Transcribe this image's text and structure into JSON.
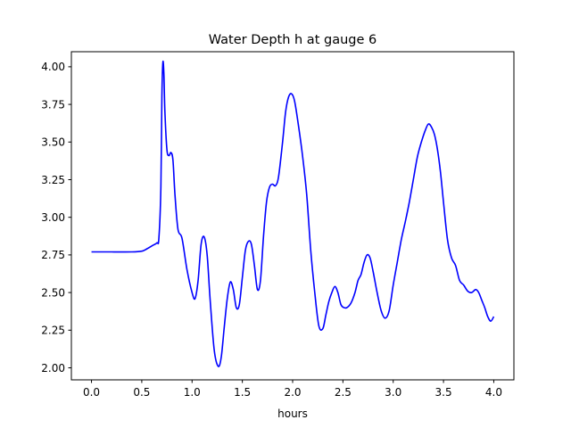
{
  "chart_data": {
    "type": "line",
    "title": "Water Depth h at gauge 6",
    "xlabel": "hours",
    "ylabel": "",
    "xlim": [
      -0.2,
      4.2
    ],
    "ylim": [
      1.92,
      4.1
    ],
    "xticks": [
      0.0,
      0.5,
      1.0,
      1.5,
      2.0,
      2.5,
      3.0,
      3.5,
      4.0
    ],
    "xtick_labels": [
      "0.0",
      "0.5",
      "1.0",
      "1.5",
      "2.0",
      "2.5",
      "3.0",
      "3.5",
      "4.0"
    ],
    "yticks": [
      2.0,
      2.25,
      2.5,
      2.75,
      3.0,
      3.25,
      3.5,
      3.75,
      4.0
    ],
    "ytick_labels": [
      "2.00",
      "2.25",
      "2.50",
      "2.75",
      "3.00",
      "3.25",
      "3.50",
      "3.75",
      "4.00"
    ],
    "grid": false,
    "series": [
      {
        "color": "#0000ff",
        "x": [
          0.0,
          0.2,
          0.4,
          0.5,
          0.55,
          0.6,
          0.65,
          0.67,
          0.69,
          0.7,
          0.71,
          0.72,
          0.73,
          0.75,
          0.77,
          0.79,
          0.81,
          0.83,
          0.86,
          0.9,
          0.95,
          1.0,
          1.03,
          1.06,
          1.09,
          1.12,
          1.15,
          1.18,
          1.22,
          1.26,
          1.29,
          1.32,
          1.35,
          1.38,
          1.41,
          1.44,
          1.47,
          1.5,
          1.53,
          1.56,
          1.59,
          1.62,
          1.65,
          1.68,
          1.71,
          1.74,
          1.77,
          1.8,
          1.83,
          1.86,
          1.9,
          1.93,
          1.96,
          1.99,
          2.02,
          2.06,
          2.1,
          2.14,
          2.18,
          2.22,
          2.26,
          2.3,
          2.33,
          2.36,
          2.39,
          2.42,
          2.45,
          2.48,
          2.51,
          2.54,
          2.58,
          2.62,
          2.65,
          2.68,
          2.71,
          2.74,
          2.77,
          2.8,
          2.84,
          2.88,
          2.92,
          2.96,
          3.0,
          3.04,
          3.08,
          3.12,
          3.16,
          3.2,
          3.24,
          3.28,
          3.32,
          3.35,
          3.38,
          3.41,
          3.44,
          3.47,
          3.5,
          3.54,
          3.58,
          3.62,
          3.66,
          3.7,
          3.74,
          3.78,
          3.82,
          3.85,
          3.88,
          3.91,
          3.94,
          3.97,
          4.0
        ],
        "y": [
          2.77,
          2.77,
          2.77,
          2.775,
          2.79,
          2.81,
          2.83,
          2.86,
          3.2,
          3.8,
          4.03,
          3.95,
          3.7,
          3.45,
          3.41,
          3.43,
          3.38,
          3.15,
          2.92,
          2.86,
          2.65,
          2.5,
          2.46,
          2.58,
          2.82,
          2.87,
          2.75,
          2.45,
          2.12,
          2.01,
          2.07,
          2.27,
          2.46,
          2.57,
          2.52,
          2.4,
          2.42,
          2.6,
          2.78,
          2.84,
          2.82,
          2.68,
          2.52,
          2.58,
          2.87,
          3.1,
          3.2,
          3.22,
          3.21,
          3.27,
          3.5,
          3.7,
          3.8,
          3.82,
          3.77,
          3.6,
          3.4,
          3.15,
          2.78,
          2.5,
          2.28,
          2.26,
          2.35,
          2.44,
          2.5,
          2.54,
          2.5,
          2.42,
          2.4,
          2.4,
          2.43,
          2.5,
          2.58,
          2.62,
          2.7,
          2.75,
          2.73,
          2.64,
          2.5,
          2.38,
          2.33,
          2.38,
          2.55,
          2.7,
          2.85,
          2.97,
          3.1,
          3.25,
          3.4,
          3.5,
          3.58,
          3.62,
          3.6,
          3.55,
          3.45,
          3.3,
          3.1,
          2.85,
          2.73,
          2.68,
          2.58,
          2.55,
          2.51,
          2.5,
          2.52,
          2.5,
          2.45,
          2.4,
          2.34,
          2.31,
          2.34
        ]
      }
    ]
  }
}
